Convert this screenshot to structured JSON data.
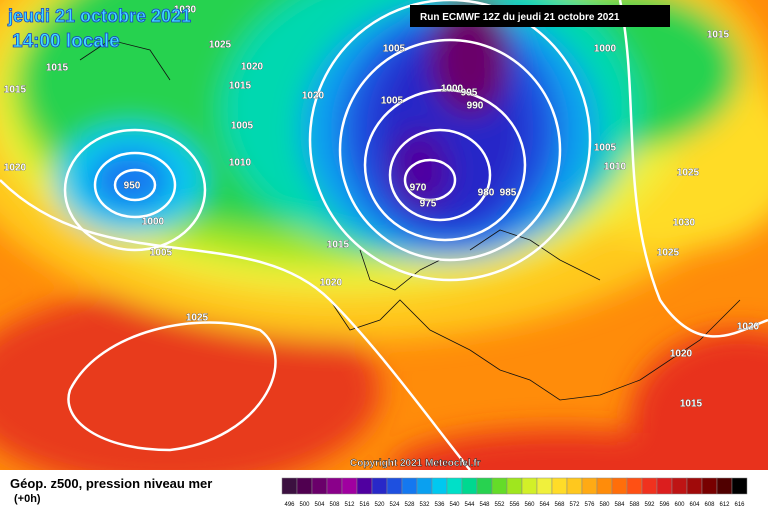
{
  "header": {
    "date": "jeudi 21 octobre 2021",
    "time": "14:00 locale"
  },
  "run": "Run ECMWF 12Z du jeudi 21 octobre 2021",
  "isobar_labels": [
    "1030",
    "1025",
    "1015",
    "1015",
    "1020",
    "1015",
    "1020",
    "1005",
    "1010",
    "1020",
    "950",
    "1000",
    "1005",
    "1015",
    "1020",
    "1025",
    "1005",
    "1000",
    "995",
    "990",
    "1005",
    "970",
    "975",
    "980",
    "985",
    "1000",
    "1015",
    "1005",
    "1010",
    "1025",
    "1030",
    "1025",
    "1020",
    "1020",
    "1015"
  ],
  "copyright": "Copyright 2021 Meteociel.fr",
  "legend": {
    "title": "Géop. z500, pression niveau mer",
    "subtitle": "(+0h)",
    "scale": [
      {
        "value": 496,
        "color": "#3c1040"
      },
      {
        "value": 500,
        "color": "#500050"
      },
      {
        "value": 504,
        "color": "#6a006a"
      },
      {
        "value": 508,
        "color": "#8a008a"
      },
      {
        "value": 512,
        "color": "#a000a0"
      },
      {
        "value": 516,
        "color": "#5000a0"
      },
      {
        "value": 520,
        "color": "#2828c8"
      },
      {
        "value": 524,
        "color": "#1e50e0"
      },
      {
        "value": 528,
        "color": "#1478f0"
      },
      {
        "value": 532,
        "color": "#0aa0f0"
      },
      {
        "value": 536,
        "color": "#00c8f0"
      },
      {
        "value": 540,
        "color": "#00e0c8"
      },
      {
        "value": 544,
        "color": "#00d890"
      },
      {
        "value": 548,
        "color": "#28d250"
      },
      {
        "value": 552,
        "color": "#64dc28"
      },
      {
        "value": 556,
        "color": "#a0e61e"
      },
      {
        "value": 560,
        "color": "#d2f028"
      },
      {
        "value": 564,
        "color": "#f0f03c"
      },
      {
        "value": 568,
        "color": "#ffdc28"
      },
      {
        "value": 572,
        "color": "#ffc81e"
      },
      {
        "value": 576,
        "color": "#ffaa14"
      },
      {
        "value": 580,
        "color": "#ff8c0a"
      },
      {
        "value": 584,
        "color": "#ff6e0a"
      },
      {
        "value": 588,
        "color": "#ff5014"
      },
      {
        "value": 592,
        "color": "#f0321e"
      },
      {
        "value": 596,
        "color": "#dc1e1e"
      },
      {
        "value": 600,
        "color": "#be1414"
      },
      {
        "value": 604,
        "color": "#a00a0a"
      },
      {
        "value": 608,
        "color": "#780000"
      },
      {
        "value": 612,
        "color": "#500000"
      },
      {
        "value": 616,
        "color": "#000000"
      }
    ]
  }
}
